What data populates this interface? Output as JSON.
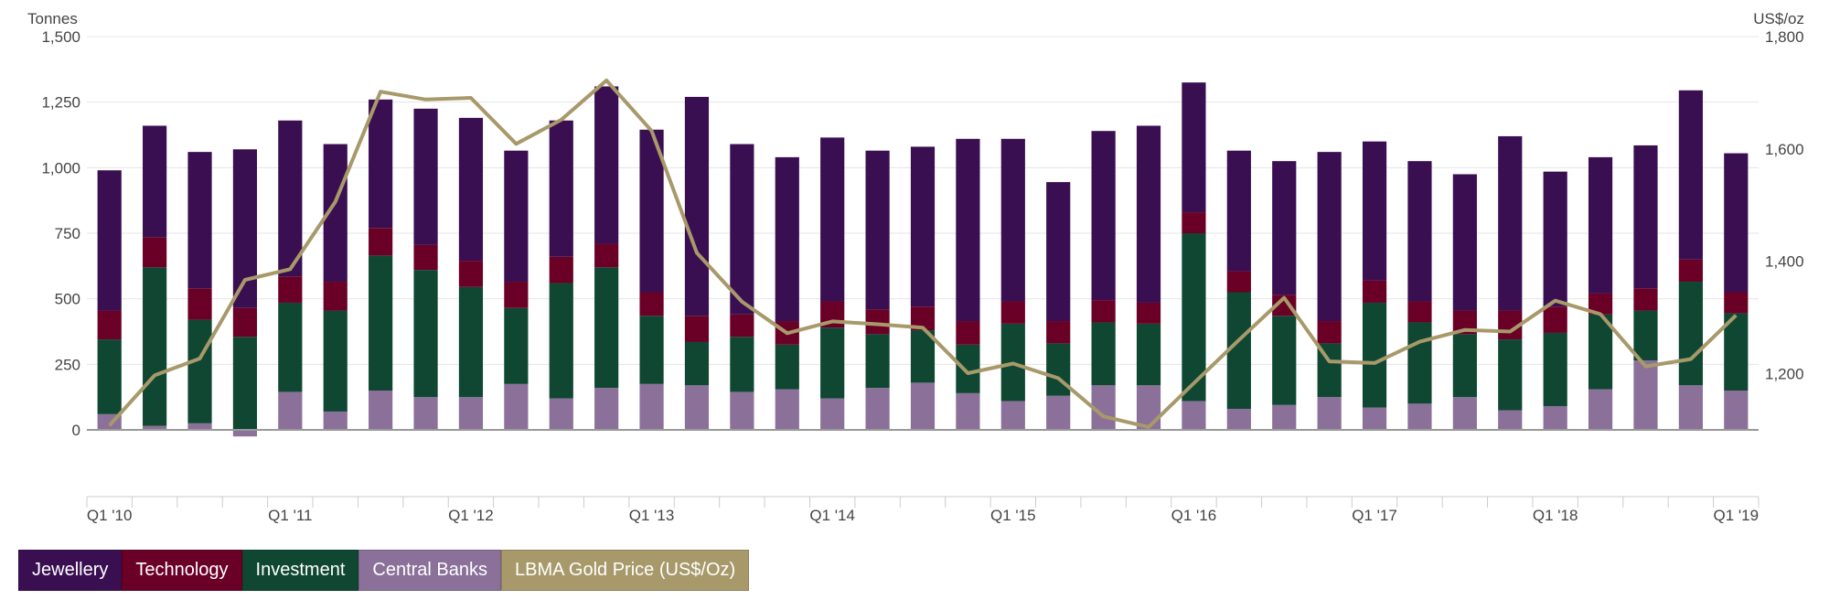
{
  "colors": {
    "jewellery": "#3a0f52",
    "technology": "#6a0026",
    "investment": "#0f4732",
    "central_banks": "#8b7099",
    "gold_price": "#a8996a"
  },
  "legend": [
    {
      "label": "Jewellery",
      "color": "#3a0f52"
    },
    {
      "label": "Technology",
      "color": "#6a0026"
    },
    {
      "label": "Investment",
      "color": "#0f4732"
    },
    {
      "label": "Central Banks",
      "color": "#8b7099"
    },
    {
      "label": "LBMA Gold Price (US$/Oz)",
      "color": "#a8996a"
    }
  ],
  "chart_data": {
    "type": "bar",
    "stacked": true,
    "y_left_label": "Tonnes",
    "y_right_label": "US$/oz",
    "y_left_range": [
      0,
      1500
    ],
    "y_left_ticks": [
      "0",
      "250",
      "500",
      "750",
      "1,000",
      "1,250",
      "1,500"
    ],
    "y_right_range": [
      1100,
      1800
    ],
    "y_right_ticks": [
      "1,200",
      "1,400",
      "1,600",
      "1,800"
    ],
    "x_tick_labels": [
      "Q1 '10",
      "Q1 '11",
      "Q1 '12",
      "Q1 '13",
      "Q1 '14",
      "Q1 '15",
      "Q1 '16",
      "Q1 '17",
      "Q1 '18",
      "Q1 '19"
    ],
    "categories": [
      "Q1 '10",
      "Q2 '10",
      "Q3 '10",
      "Q4 '10",
      "Q1 '11",
      "Q2 '11",
      "Q3 '11",
      "Q4 '11",
      "Q1 '12",
      "Q2 '12",
      "Q3 '12",
      "Q4 '12",
      "Q1 '13",
      "Q2 '13",
      "Q3 '13",
      "Q4 '13",
      "Q1 '14",
      "Q2 '14",
      "Q3 '14",
      "Q4 '14",
      "Q1 '15",
      "Q2 '15",
      "Q3 '15",
      "Q4 '15",
      "Q1 '16",
      "Q2 '16",
      "Q3 '16",
      "Q4 '16",
      "Q1 '17",
      "Q2 '17",
      "Q3 '17",
      "Q4 '17",
      "Q1 '18",
      "Q2 '18",
      "Q3 '18",
      "Q4 '18",
      "Q1 '19"
    ],
    "series": [
      {
        "name": "Central Banks",
        "values": [
          60,
          15,
          25,
          -25,
          145,
          70,
          150,
          125,
          125,
          175,
          120,
          160,
          175,
          170,
          145,
          155,
          120,
          160,
          180,
          140,
          110,
          130,
          170,
          170,
          110,
          80,
          95,
          125,
          85,
          100,
          125,
          75,
          90,
          155,
          265,
          170,
          150
        ]
      },
      {
        "name": "Investment",
        "values": [
          285,
          605,
          395,
          355,
          340,
          385,
          515,
          485,
          420,
          290,
          440,
          460,
          260,
          165,
          210,
          170,
          270,
          205,
          200,
          185,
          295,
          200,
          240,
          235,
          640,
          445,
          340,
          205,
          400,
          310,
          240,
          270,
          280,
          285,
          190,
          395,
          295
        ]
      },
      {
        "name": "Technology",
        "values": [
          110,
          115,
          120,
          110,
          100,
          110,
          105,
          95,
          100,
          100,
          100,
          90,
          90,
          100,
          85,
          90,
          100,
          95,
          90,
          90,
          85,
          85,
          85,
          80,
          80,
          80,
          80,
          85,
          85,
          80,
          90,
          110,
          100,
          80,
          85,
          85,
          80
        ]
      },
      {
        "name": "Jewellery",
        "values": [
          535,
          425,
          520,
          605,
          595,
          525,
          490,
          520,
          545,
          500,
          520,
          600,
          620,
          835,
          650,
          625,
          625,
          605,
          610,
          695,
          620,
          530,
          645,
          675,
          495,
          460,
          510,
          645,
          530,
          535,
          520,
          665,
          515,
          520,
          545,
          645,
          530
        ]
      }
    ],
    "line": {
      "name": "LBMA Gold Price (US$/Oz)",
      "values": [
        1108,
        1197,
        1227,
        1367,
        1386,
        1506,
        1702,
        1688,
        1691,
        1609,
        1652,
        1722,
        1632,
        1415,
        1328,
        1272,
        1293,
        1288,
        1282,
        1201,
        1218,
        1192,
        1124,
        1105,
        1183,
        1260,
        1335,
        1222,
        1219,
        1257,
        1278,
        1275,
        1330,
        1306,
        1213,
        1226,
        1304
      ]
    }
  }
}
